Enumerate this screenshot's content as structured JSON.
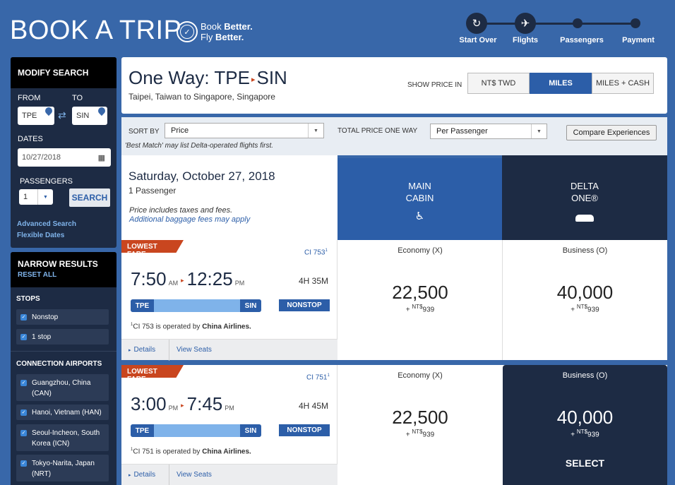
{
  "header": {
    "title": "BOOK A TRIP",
    "tagline_1_prefix": "Book ",
    "tagline_1_bold": "Better.",
    "tagline_2_prefix": "Fly ",
    "tagline_2_bold": "Better.",
    "steps": [
      "Start Over",
      "Flights",
      "Passengers",
      "Payment"
    ]
  },
  "modify_search": {
    "title": "MODIFY SEARCH",
    "from_label": "FROM",
    "to_label": "TO",
    "from_value": "TPE",
    "to_value": "SIN",
    "dates_label": "DATES",
    "date_value": "10/27/2018",
    "passengers_label": "PASSENGERS",
    "passengers_value": "1",
    "search_label": "SEARCH",
    "advanced_search": "Advanced Search",
    "flexible_dates": "Flexible Dates"
  },
  "narrow_results": {
    "title": "NARROW RESULTS",
    "reset_all": "RESET ALL",
    "stops_label": "STOPS",
    "stops": [
      "Nonstop",
      "1 stop"
    ],
    "connections_label": "CONNECTION AIRPORTS",
    "airports": [
      "Guangzhou, China (CAN)",
      "Hanoi, Vietnam (HAN)",
      "Seoul-Incheon, South Korea (ICN)",
      "Tokyo-Narita, Japan (NRT)"
    ]
  },
  "route": {
    "title_prefix": "One Way: TPE",
    "title_suffix": "SIN",
    "subtitle": "Taipei, Taiwan to Singapore, Singapore",
    "show_price_label": "SHOW PRICE IN",
    "price_options": [
      "NT$ TWD",
      "MILES",
      "MILES + CASH"
    ],
    "active_price_option": "MILES"
  },
  "sort": {
    "sort_by_label": "SORT BY",
    "sort_value": "Price",
    "total_price_label": "TOTAL PRICE ONE WAY",
    "per_value": "Per Passenger",
    "compare_button": "Compare Experiences",
    "note": "'Best Match' may list Delta-operated flights first."
  },
  "date_info": {
    "date": "Saturday, October 27, 2018",
    "passengers": "1 Passenger",
    "note1": "Price includes taxes and fees.",
    "note2": "Additional baggage fees may apply"
  },
  "cabins": {
    "main_line1": "MAIN",
    "main_line2": "CABIN",
    "delta_line1": "DELTA",
    "delta_line2": "ONE®"
  },
  "flights": [
    {
      "badge": "LOWEST FARE",
      "flight_no": "CI 753",
      "flight_sup": "1",
      "depart": "7:50",
      "depart_ampm": "AM",
      "arrive": "12:25",
      "arrive_ampm": "PM",
      "duration": "4H 35M",
      "origin": "TPE",
      "destination": "SIN",
      "stops": "NONSTOP",
      "op_sup": "1",
      "op_text": "CI 753 is operated by ",
      "op_airline": "China Airlines.",
      "details": "Details",
      "view_seats": "View Seats",
      "main_class": "Economy (X)",
      "main_miles": "22,500",
      "main_cash_prefix": "+ ",
      "main_cash_currency": "NT$",
      "main_cash_value": "939",
      "delta_class": "Business (O)",
      "delta_miles": "40,000",
      "delta_cash_prefix": "+ ",
      "delta_cash_currency": "NT$",
      "delta_cash_value": "939"
    },
    {
      "badge": "LOWEST FARE",
      "flight_no": "CI 751",
      "flight_sup": "1",
      "depart": "3:00",
      "depart_ampm": "PM",
      "arrive": "7:45",
      "arrive_ampm": "PM",
      "duration": "4H 45M",
      "origin": "TPE",
      "destination": "SIN",
      "stops": "NONSTOP",
      "op_sup": "1",
      "op_text": "CI 751 is operated by ",
      "op_airline": "China Airlines.",
      "details": "Details",
      "view_seats": "View Seats",
      "main_class": "Economy (X)",
      "main_miles": "22,500",
      "main_cash_prefix": "+ ",
      "main_cash_currency": "NT$",
      "main_cash_value": "939",
      "delta_class": "Business (O)",
      "delta_miles": "40,000",
      "delta_cash_prefix": "+ ",
      "delta_cash_currency": "NT$",
      "delta_cash_value": "939",
      "select_label": "SELECT"
    }
  ],
  "colors": {
    "background": "#3867a9",
    "navy": "#1d2b44",
    "accent_blue": "#2c5ea8",
    "badge_orange": "#c9461f",
    "route_light": "#7fb3ea"
  }
}
